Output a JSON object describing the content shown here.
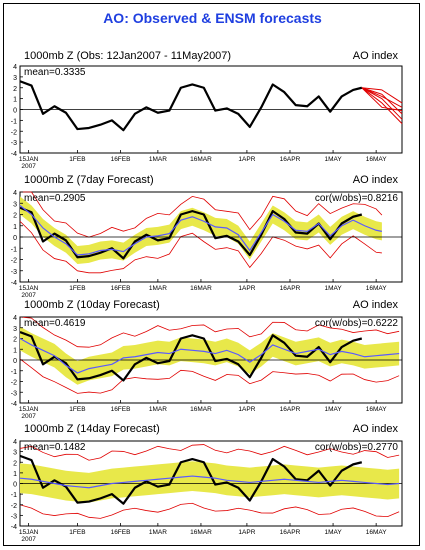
{
  "title": "AO: Observed & ENSM forecasts",
  "colors": {
    "title": "#1f3fe0",
    "observed": "#000000",
    "ensemble_mean": "#5a5aff",
    "spread_band": "#e8e84a",
    "members": "#e00000"
  },
  "chart_data": [
    {
      "type": "line",
      "title": "1000mb Z (Obs: 12Jan2007 - 11May2007)",
      "right_title": "AO index",
      "mean_label": "mean=0.3335",
      "cor_label": "",
      "ylim": [
        -4,
        4
      ],
      "yticks": [
        "-4",
        "-3",
        "-2",
        "-1",
        "0",
        "1",
        "2",
        "3",
        "4"
      ],
      "xticks": [
        "15JAN",
        "1FEB",
        "16FEB",
        "1MAR",
        "16MAR",
        "1APR",
        "16APR",
        "1MAY",
        "16MAY"
      ],
      "xtick_days": [
        3,
        20,
        35,
        48,
        63,
        79,
        94,
        109,
        124
      ],
      "year_label": "2007",
      "xlim": [
        0,
        133
      ],
      "series": [
        {
          "kind": "observed",
          "x": [
            0,
            4,
            8,
            12,
            16,
            20,
            24,
            28,
            32,
            36,
            40,
            44,
            48,
            52,
            56,
            60,
            64,
            68,
            72,
            76,
            80,
            84,
            88,
            92,
            96,
            100,
            104,
            108,
            112,
            116,
            119
          ],
          "y": [
            2.6,
            2.2,
            -0.4,
            0.3,
            -0.3,
            -1.8,
            -1.7,
            -1.4,
            -1.0,
            -1.9,
            -0.4,
            0.2,
            -0.3,
            -0.1,
            2.0,
            2.3,
            2.0,
            -0.1,
            0.1,
            -0.4,
            -1.6,
            0.2,
            2.3,
            1.6,
            0.4,
            0.3,
            1.2,
            -0.2,
            1.2,
            1.8,
            2.0
          ]
        }
      ],
      "plume_x": [
        119,
        126,
        133
      ],
      "plume_members": [
        [
          2.0,
          1.4,
          -0.4
        ],
        [
          2.0,
          1.0,
          -0.9
        ],
        [
          2.0,
          0.6,
          -1.3
        ],
        [
          2.0,
          1.8,
          0.6
        ],
        [
          2.0,
          0.2,
          -0.1
        ],
        [
          2.0,
          1.2,
          0.2
        ]
      ]
    },
    {
      "type": "line",
      "title": "1000mb Z (7day Forecast)",
      "right_title": "AO index",
      "mean_label": "mean=0.2905",
      "cor_label": "cor(w/obs)=0.8216",
      "ylim": [
        -4,
        4
      ],
      "yticks": [
        "-4",
        "-3",
        "-2",
        "-1",
        "0",
        "1",
        "2",
        "3",
        "4"
      ],
      "xticks": [
        "15JAN",
        "1FEB",
        "16FEB",
        "1MAR",
        "16MAR",
        "1APR",
        "16APR",
        "1MAY",
        "16MAY"
      ],
      "xtick_days": [
        3,
        20,
        35,
        48,
        63,
        79,
        94,
        109,
        124
      ],
      "year_label": "2007",
      "xlim": [
        0,
        133
      ],
      "series": [
        {
          "kind": "observed",
          "x": [
            0,
            4,
            8,
            12,
            16,
            20,
            24,
            28,
            32,
            36,
            40,
            44,
            48,
            52,
            56,
            60,
            64,
            68,
            72,
            76,
            80,
            84,
            88,
            92,
            96,
            100,
            104,
            108,
            112,
            116,
            119
          ],
          "y": [
            2.6,
            2.2,
            -0.4,
            0.3,
            -0.3,
            -1.8,
            -1.7,
            -1.4,
            -1.0,
            -1.9,
            -0.4,
            0.2,
            -0.3,
            -0.1,
            2.0,
            2.3,
            2.0,
            -0.1,
            0.1,
            -0.4,
            -1.6,
            0.2,
            2.3,
            1.6,
            0.4,
            0.3,
            1.2,
            -0.2,
            1.2,
            1.8,
            2.0
          ]
        },
        {
          "kind": "mean",
          "x": [
            0,
            4,
            8,
            12,
            16,
            20,
            24,
            28,
            32,
            36,
            40,
            44,
            48,
            52,
            56,
            60,
            64,
            68,
            72,
            76,
            80,
            84,
            88,
            92,
            96,
            100,
            104,
            108,
            112,
            116,
            120,
            124,
            126
          ],
          "y": [
            2.8,
            2.0,
            0.8,
            0.0,
            -0.6,
            -1.6,
            -1.5,
            -1.2,
            -1.1,
            -1.3,
            -0.6,
            0.0,
            0.1,
            0.3,
            1.5,
            1.8,
            1.4,
            0.9,
            0.8,
            0.2,
            -1.2,
            0.4,
            2.0,
            1.4,
            0.6,
            0.5,
            1.2,
            0.1,
            1.0,
            1.5,
            1.0,
            0.6,
            0.5
          ]
        }
      ],
      "band_halfwidth": 0.8,
      "outer_halfwidth": 1.7
    },
    {
      "type": "line",
      "title": "1000mb Z (10day Forecast)",
      "right_title": "AO index",
      "mean_label": "mean=0.4619",
      "cor_label": "cor(w/obs)=0.6222",
      "ylim": [
        -4,
        4
      ],
      "yticks": [
        "-4",
        "-3",
        "-2",
        "-1",
        "0",
        "1",
        "2",
        "3",
        "4"
      ],
      "xticks": [
        "15JAN",
        "1FEB",
        "16FEB",
        "1MAR",
        "16MAR",
        "1APR",
        "16APR",
        "1MAY",
        "16MAY"
      ],
      "xtick_days": [
        3,
        20,
        35,
        48,
        63,
        79,
        94,
        109,
        124
      ],
      "year_label": "2007",
      "xlim": [
        0,
        133
      ],
      "series": [
        {
          "kind": "observed",
          "x": [
            0,
            4,
            8,
            12,
            16,
            20,
            24,
            28,
            32,
            36,
            40,
            44,
            48,
            52,
            56,
            60,
            64,
            68,
            72,
            76,
            80,
            84,
            88,
            92,
            96,
            100,
            104,
            108,
            112,
            116,
            119
          ],
          "y": [
            2.6,
            2.2,
            -0.4,
            0.3,
            -0.3,
            -1.8,
            -1.7,
            -1.4,
            -1.0,
            -1.9,
            -0.4,
            0.2,
            -0.3,
            -0.1,
            2.0,
            2.3,
            2.0,
            -0.1,
            0.1,
            -0.4,
            -1.6,
            0.2,
            2.3,
            1.6,
            0.4,
            0.3,
            1.2,
            -0.2,
            1.2,
            1.8,
            2.0
          ]
        },
        {
          "kind": "mean",
          "x": [
            0,
            4,
            8,
            12,
            16,
            20,
            24,
            28,
            32,
            36,
            40,
            44,
            48,
            52,
            56,
            60,
            64,
            68,
            72,
            76,
            80,
            84,
            88,
            92,
            96,
            100,
            104,
            108,
            112,
            116,
            120,
            124,
            128,
            132
          ],
          "y": [
            2.0,
            1.4,
            0.9,
            0.4,
            -0.5,
            -1.2,
            -0.8,
            -0.6,
            -0.4,
            0.2,
            0.3,
            0.5,
            0.7,
            0.6,
            1.0,
            0.9,
            0.8,
            0.6,
            0.9,
            0.5,
            -0.2,
            0.5,
            1.4,
            1.0,
            0.6,
            0.8,
            1.0,
            0.5,
            0.8,
            0.6,
            0.3,
            0.4,
            0.5,
            0.6
          ]
        }
      ],
      "band_halfwidth": 1.1,
      "outer_halfwidth": 2.2
    },
    {
      "type": "line",
      "title": "1000mb Z (14day Forecast)",
      "right_title": "AO index",
      "mean_label": "mean=0.1482",
      "cor_label": "cor(w/obs)=0.2770",
      "ylim": [
        -4,
        4
      ],
      "yticks": [
        "-4",
        "-3",
        "-2",
        "-1",
        "0",
        "1",
        "2",
        "3",
        "4"
      ],
      "xticks": [
        "15JAN",
        "1FEB",
        "16FEB",
        "1MAR",
        "16MAR",
        "1APR",
        "16APR",
        "1MAY",
        "16MAY"
      ],
      "xtick_days": [
        3,
        20,
        35,
        48,
        63,
        79,
        94,
        109,
        124
      ],
      "year_label": "2007",
      "xlim": [
        0,
        133
      ],
      "series": [
        {
          "kind": "observed",
          "x": [
            0,
            4,
            8,
            12,
            16,
            20,
            24,
            28,
            32,
            36,
            40,
            44,
            48,
            52,
            56,
            60,
            64,
            68,
            72,
            76,
            80,
            84,
            88,
            92,
            96,
            100,
            104,
            108,
            112,
            116,
            119
          ],
          "y": [
            2.6,
            2.2,
            -0.4,
            0.3,
            -0.3,
            -1.8,
            -1.7,
            -1.4,
            -1.0,
            -1.9,
            -0.4,
            0.2,
            -0.3,
            -0.1,
            2.0,
            2.3,
            2.0,
            -0.1,
            0.1,
            -0.4,
            -1.6,
            0.2,
            2.3,
            1.6,
            0.4,
            0.3,
            1.2,
            -0.2,
            1.2,
            1.8,
            2.0
          ]
        },
        {
          "kind": "mean",
          "x": [
            0,
            4,
            8,
            12,
            16,
            20,
            24,
            28,
            32,
            36,
            40,
            44,
            48,
            52,
            56,
            60,
            64,
            68,
            72,
            76,
            80,
            84,
            88,
            92,
            96,
            100,
            104,
            108,
            112,
            116,
            120,
            124,
            128,
            132
          ],
          "y": [
            0.5,
            0.4,
            0.2,
            0.0,
            -0.2,
            -0.3,
            -0.4,
            -0.2,
            0.0,
            0.1,
            0.2,
            0.3,
            0.4,
            0.5,
            0.6,
            0.7,
            0.6,
            0.5,
            0.3,
            0.2,
            0.1,
            0.2,
            0.3,
            0.4,
            0.3,
            0.2,
            0.1,
            0.2,
            0.3,
            0.2,
            0.1,
            0.0,
            -0.1,
            0.0
          ]
        }
      ],
      "band_halfwidth": 1.4,
      "outer_halfwidth": 2.8
    }
  ]
}
